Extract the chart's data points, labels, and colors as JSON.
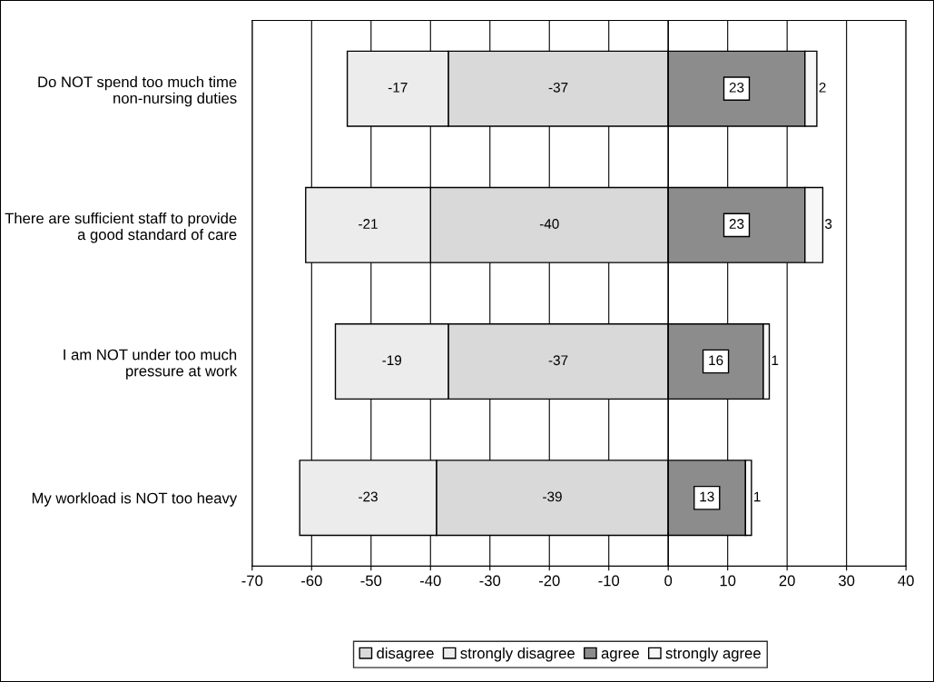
{
  "chart_data": {
    "type": "bar",
    "orientation": "horizontal",
    "stacked": true,
    "categories": [
      "Do NOT spend too much time non-nursing duties",
      "There are sufficient staff to provide a good standard of care",
      "I am NOT under too much pressure at work",
      "My workload is NOT too heavy"
    ],
    "series": [
      {
        "name": "disagree",
        "color": "#d9d9d9",
        "values": [
          -37,
          -40,
          -37,
          -39
        ]
      },
      {
        "name": "strongly disagree",
        "color": "#ececec",
        "values": [
          -17,
          -21,
          -19,
          -23
        ]
      },
      {
        "name": "agree",
        "color": "#8c8c8c",
        "values": [
          23,
          23,
          16,
          13
        ]
      },
      {
        "name": "strongly agree",
        "color": "#f7f7f7",
        "values": [
          2,
          3,
          1,
          1
        ]
      }
    ],
    "xlim": [
      -70,
      40
    ],
    "xticks": [
      -70,
      -60,
      -50,
      -40,
      -30,
      -20,
      -10,
      0,
      10,
      20,
      30,
      40
    ],
    "grid": "x",
    "legend": "bottom",
    "data_labels": true
  }
}
